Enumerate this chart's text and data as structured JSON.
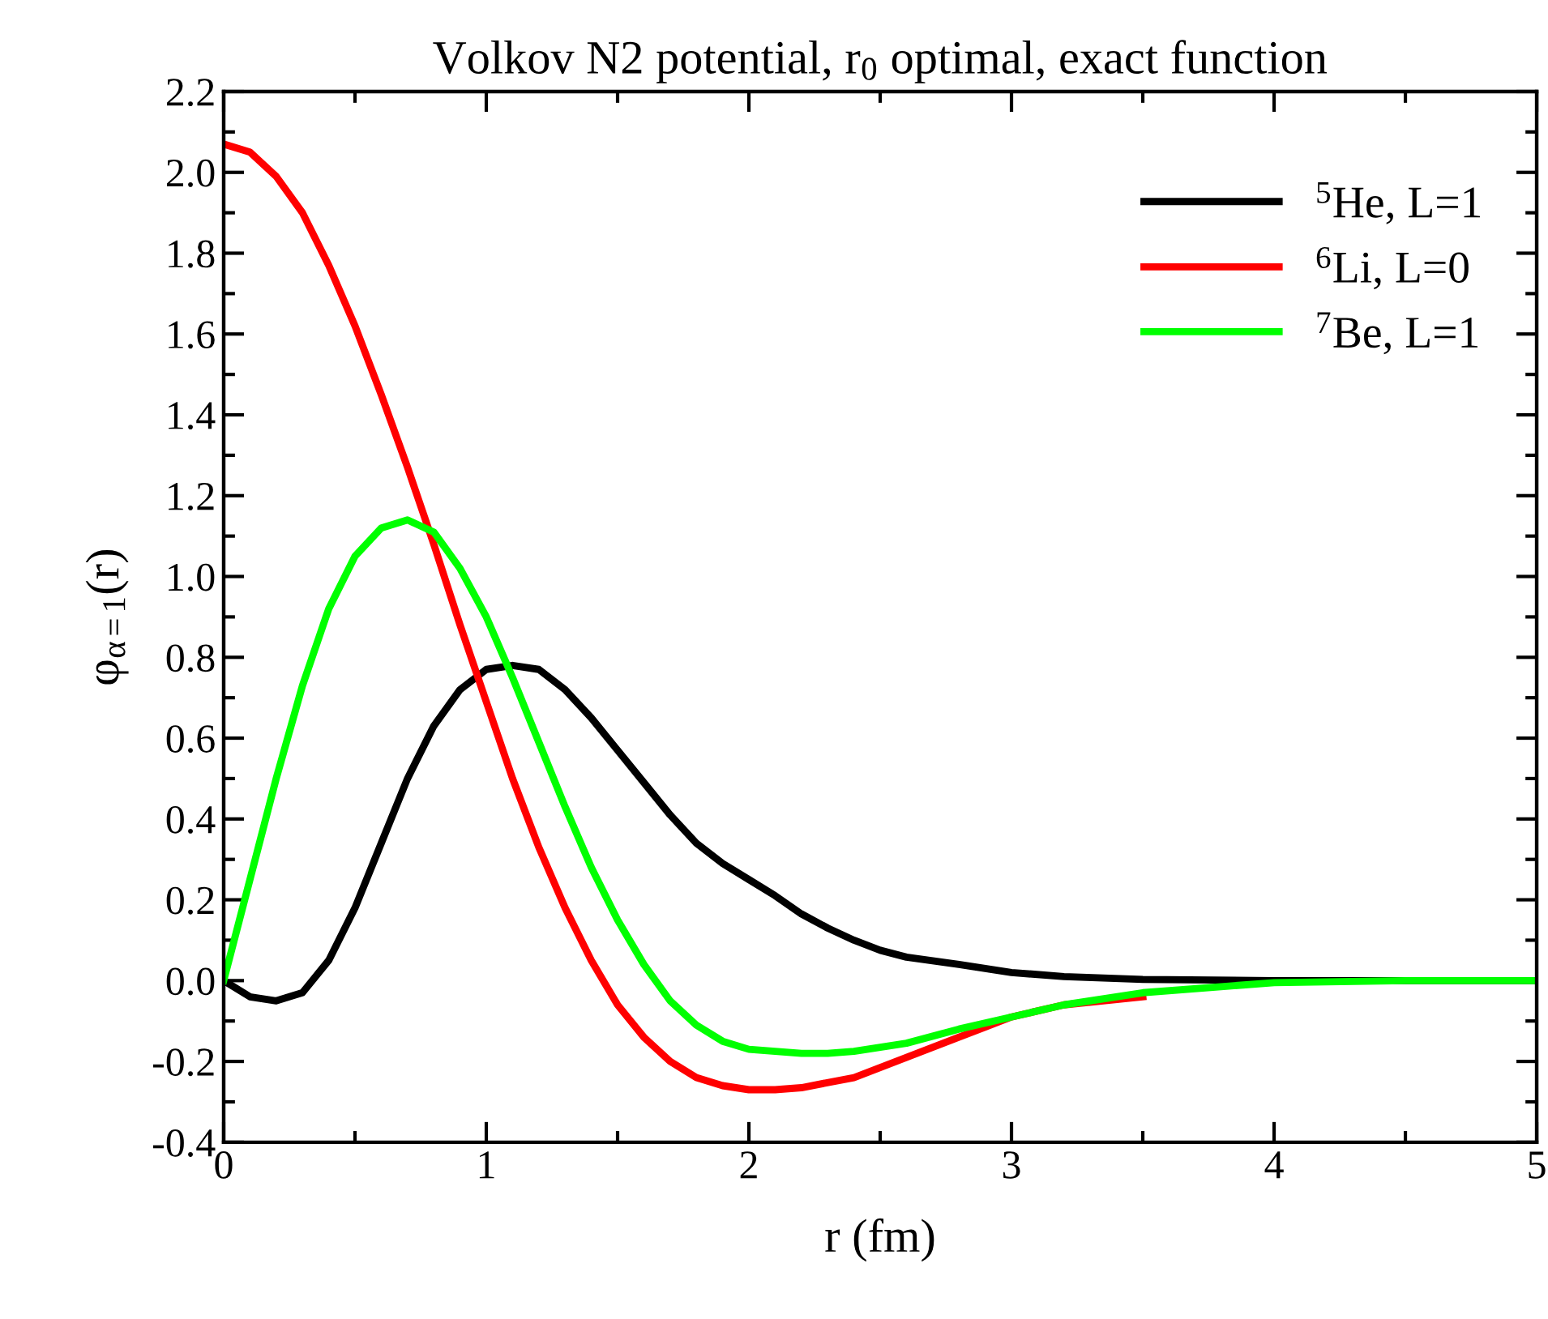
{
  "chart_data": {
    "type": "line",
    "title": "Volkov N2 potential, r$_{0}$ optimal, exact function",
    "xlabel": "r (fm)",
    "ylabel": "φ$_{α=1}$(r)",
    "xlim": [
      0,
      5
    ],
    "xticks": [
      0,
      1,
      2,
      3,
      4,
      5
    ],
    "ylim": [
      -0.4,
      2.2
    ],
    "yticks": [
      -0.4,
      -0.2,
      {
        "value": 0,
        "label": "0.0"
      },
      0.2,
      0.4,
      0.6,
      0.8,
      {
        "value": 1,
        "label": "1.0"
      },
      1.2,
      1.4,
      1.6,
      1.8,
      {
        "value": 2,
        "label": "2.0"
      },
      2.2
    ],
    "grid": false,
    "legend": "top right",
    "marker": "none",
    "line_style": "solid",
    "series": [
      {
        "name": "$^{5}$He, L=1",
        "color": "#000000",
        "x": [
          0,
          0.1,
          0.2,
          0.3,
          0.4,
          0.5,
          0.6,
          0.7,
          0.8,
          0.9,
          1.0,
          1.1,
          1.2,
          1.3,
          1.4,
          1.5,
          1.6,
          1.7,
          1.8,
          1.9,
          2.0,
          2.1,
          2.2,
          2.3,
          2.4,
          2.5,
          2.6,
          2.8,
          3.0,
          3.2,
          3.5,
          4.0,
          4.5,
          5.0
        ],
        "values": [
          0,
          -0.04,
          -0.05,
          -0.03,
          0.05,
          0.18,
          0.34,
          0.5,
          0.63,
          0.72,
          0.77,
          0.78,
          0.77,
          0.72,
          0.65,
          0.57,
          0.49,
          0.41,
          0.34,
          0.29,
          0.25,
          0.21,
          0.165,
          0.13,
          0.1,
          0.075,
          0.058,
          0.04,
          0.02,
          0.01,
          0.003,
          0,
          0,
          0
        ]
      },
      {
        "name": "$^{6}$Li, L=0",
        "color": "#ff0000",
        "x": [
          0,
          0.1,
          0.2,
          0.3,
          0.4,
          0.5,
          0.6,
          0.7,
          0.8,
          0.9,
          1.0,
          1.1,
          1.2,
          1.3,
          1.4,
          1.5,
          1.6,
          1.7,
          1.8,
          1.9,
          2.0,
          2.1,
          2.2,
          2.4,
          2.6,
          2.8,
          3.0,
          3.2,
          3.5
        ],
        "values": [
          2.07,
          2.05,
          1.99,
          1.9,
          1.77,
          1.62,
          1.45,
          1.27,
          1.08,
          0.88,
          0.69,
          0.5,
          0.33,
          0.18,
          0.05,
          -0.06,
          -0.14,
          -0.2,
          -0.24,
          -0.26,
          -0.27,
          -0.27,
          -0.265,
          -0.24,
          -0.19,
          -0.14,
          -0.09,
          -0.06,
          -0.04
        ]
      },
      {
        "name": "$^{7}$Be, L=1",
        "color": "#00ff00",
        "x": [
          0,
          0.1,
          0.2,
          0.3,
          0.4,
          0.5,
          0.6,
          0.7,
          0.8,
          0.9,
          1.0,
          1.1,
          1.2,
          1.3,
          1.4,
          1.5,
          1.6,
          1.7,
          1.8,
          1.9,
          2.0,
          2.2,
          2.3,
          2.4,
          2.6,
          2.8,
          3.0,
          3.2,
          3.5,
          4.0,
          4.5,
          5.0
        ],
        "values": [
          0,
          0.25,
          0.5,
          0.73,
          0.92,
          1.05,
          1.12,
          1.14,
          1.11,
          1.02,
          0.9,
          0.75,
          0.59,
          0.43,
          0.28,
          0.15,
          0.04,
          -0.05,
          -0.11,
          -0.15,
          -0.17,
          -0.18,
          -0.18,
          -0.175,
          -0.155,
          -0.12,
          -0.09,
          -0.06,
          -0.03,
          -0.005,
          0,
          0
        ]
      }
    ]
  }
}
